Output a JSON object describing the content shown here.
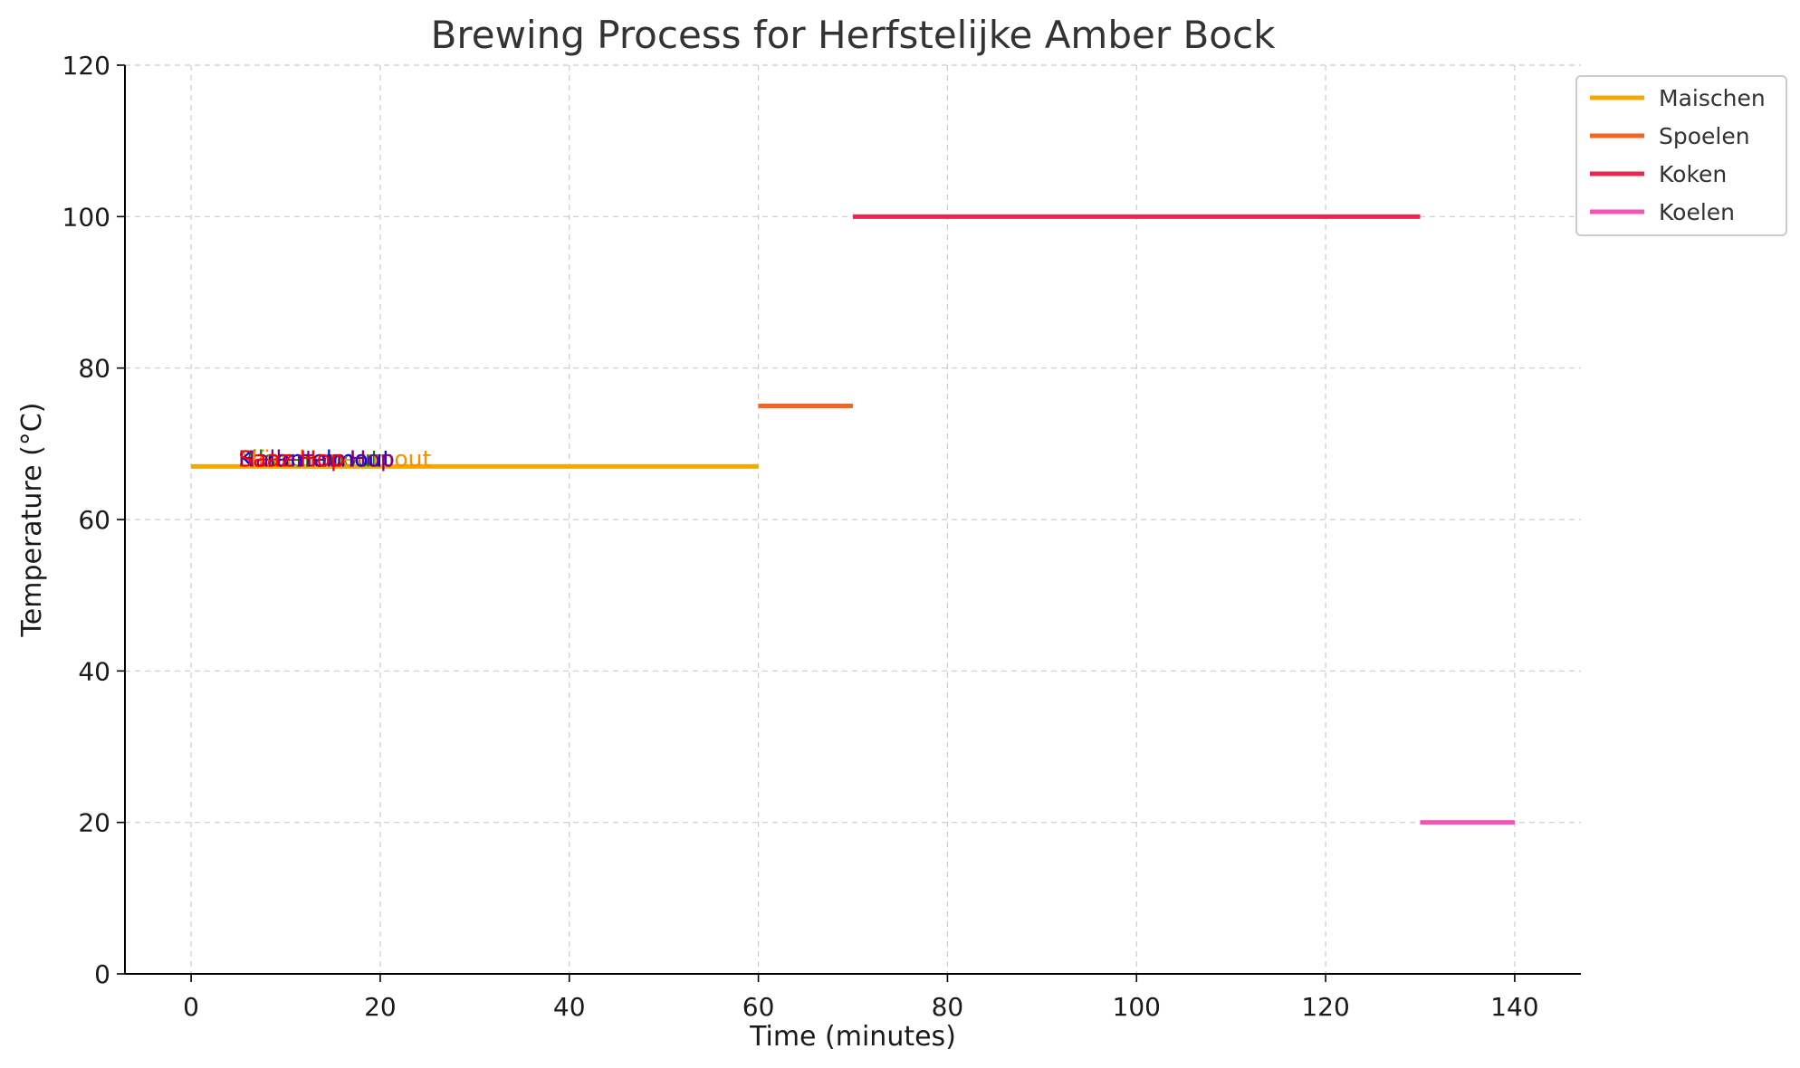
{
  "chart_data": {
    "type": "line",
    "title": "Brewing Process for Herfstelijke Amber Bock",
    "xlabel": "Time (minutes)",
    "ylabel": "Temperature (°C)",
    "xlim": [
      -7,
      147
    ],
    "ylim": [
      0,
      120
    ],
    "xticks": [
      0,
      20,
      40,
      60,
      80,
      100,
      120,
      140
    ],
    "yticks": [
      0,
      20,
      40,
      60,
      80,
      100,
      120
    ],
    "grid": true,
    "legend_position": "top-right",
    "series": [
      {
        "name": "Maischen",
        "color": "#f5a800",
        "x": [
          0,
          60
        ],
        "y": [
          67,
          67
        ]
      },
      {
        "name": "Spoelen",
        "color": "#f26522",
        "x": [
          60,
          70
        ],
        "y": [
          75,
          75
        ]
      },
      {
        "name": "Koken",
        "color": "#e8264f",
        "x": [
          70,
          130
        ],
        "y": [
          100,
          100
        ]
      },
      {
        "name": "Koelen",
        "color": "#f255b5",
        "x": [
          130,
          140
        ],
        "y": [
          20,
          20
        ]
      }
    ],
    "annotations": [
      {
        "text": "Pilsner mout",
        "x": 5,
        "y": 67,
        "color": "#008000"
      },
      {
        "text": "Münchener mout",
        "x": 5,
        "y": 67,
        "color": "#ff8c00"
      },
      {
        "text": "Karamelmout",
        "x": 5,
        "y": 67,
        "color": "#0000ff"
      },
      {
        "text": "Hallertau Hop",
        "x": 5,
        "y": 67,
        "color": "#800080"
      },
      {
        "text": "Saaz Hop",
        "x": 5,
        "y": 67,
        "color": "#ff0000"
      }
    ]
  }
}
